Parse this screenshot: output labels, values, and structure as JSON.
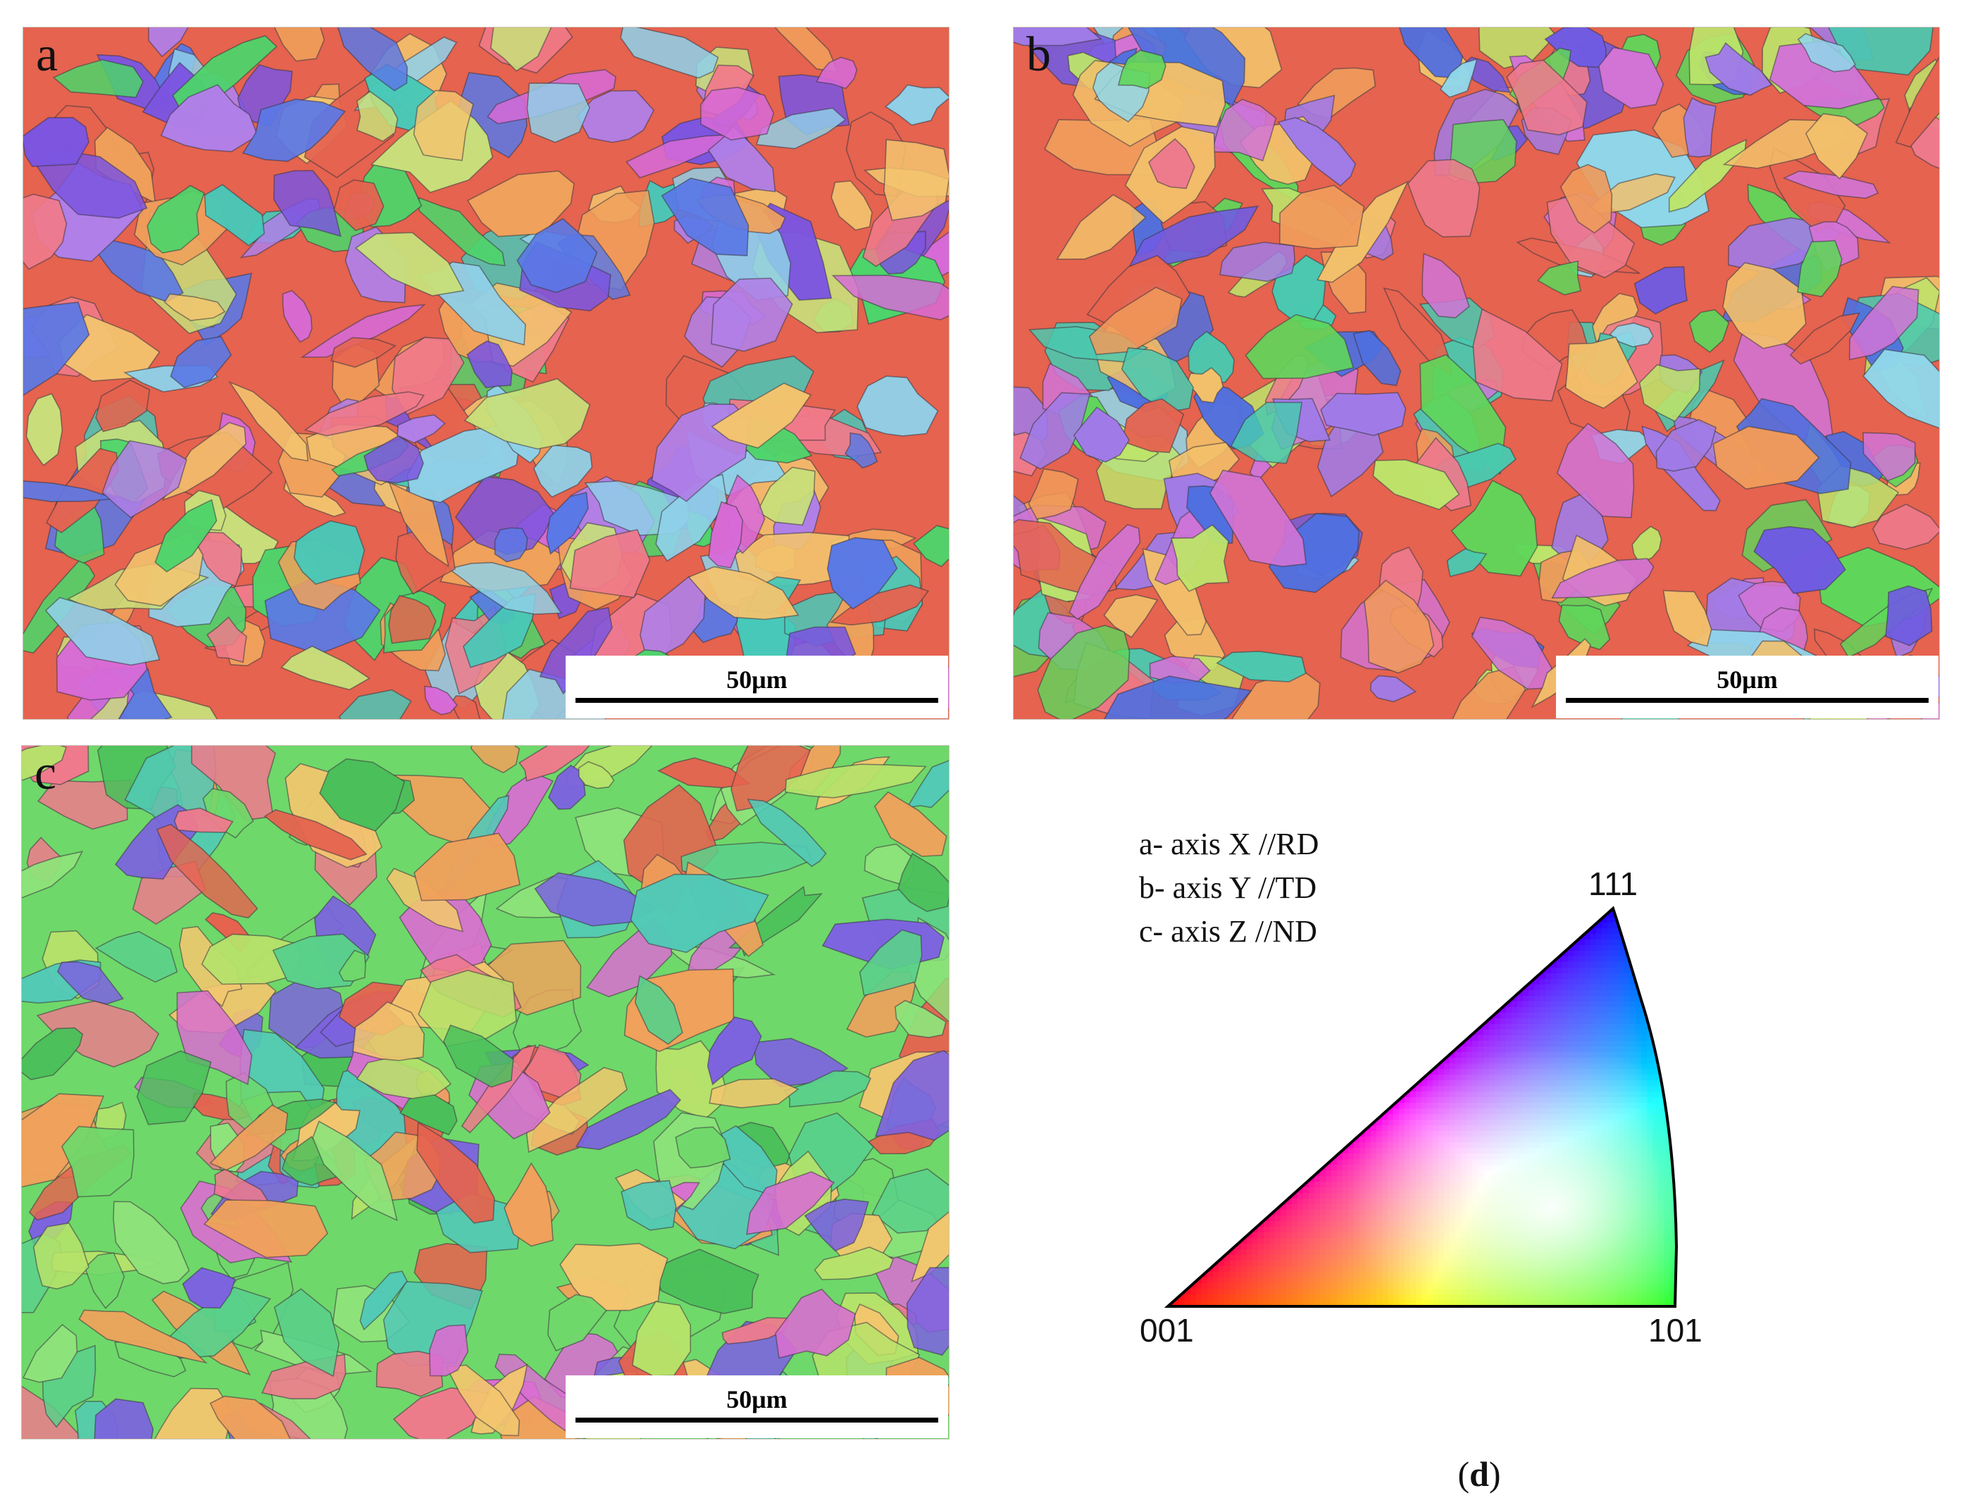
{
  "panels": [
    {
      "letter": "a",
      "scale_label": "50μm"
    },
    {
      "letter": "b",
      "scale_label": "50μm"
    },
    {
      "letter": "c",
      "scale_label": "50μm"
    }
  ],
  "legend": {
    "lines": [
      "a- axis X //RD",
      "b- axis Y //TD",
      "c- axis Z //ND"
    ]
  },
  "ipf": {
    "corner_labels": {
      "top": "111",
      "bottom_left": "001",
      "bottom_right": "101"
    },
    "colors": {
      "001": "#ff0000",
      "101": "#00ff00",
      "111": "#0000ff"
    }
  },
  "caption": {
    "open": "(",
    "letter": "d",
    "close": ")"
  }
}
